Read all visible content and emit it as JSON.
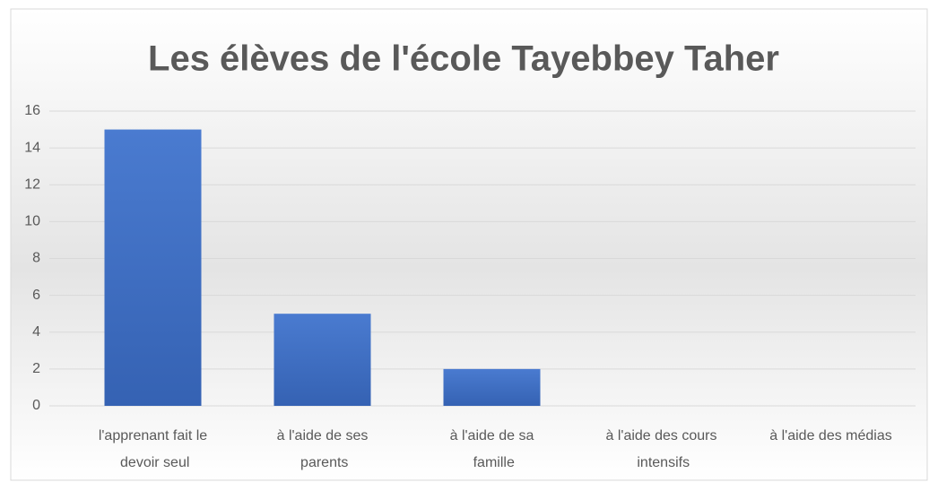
{
  "chart_data": {
    "type": "bar",
    "title": "Les élèves de l'école Tayebbey Taher",
    "categories": [
      "l'apprenant fait le devoir seul",
      "à l'aide de ses parents",
      "à l'aide de sa famille",
      "à l'aide des cours intensifs",
      "à l'aide des médias"
    ],
    "values": [
      15,
      5,
      2,
      0,
      0
    ],
    "color": "#4472c4",
    "ylim": [
      0,
      16
    ],
    "yticks": [
      0,
      2,
      4,
      6,
      8,
      10,
      12,
      14,
      16
    ],
    "grid": true
  }
}
